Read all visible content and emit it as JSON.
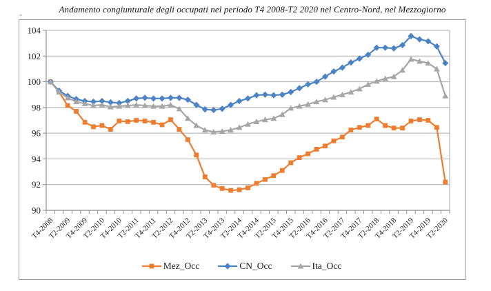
{
  "page": {
    "title": "Andamento congiunturale degli occupati nel periodo T4  2008-T2  2020 nel Centro-Nord, nel Mezzogiorno",
    "artifact_mark": "„"
  },
  "colors": {
    "mez": "#ED7D31",
    "cn": "#4C83C5",
    "ita": "#A6A6A6",
    "grid": "#ABABAB",
    "axis": "#8C8C8C",
    "tick_text": "#23232e",
    "frame": "#999999"
  },
  "chart_data": {
    "type": "line",
    "title": "Andamento congiunturale degli occupati nel periodo T4  2008-T2  2020 nel Centro-Nord, nel Mezzogiorno",
    "xlabel": "",
    "ylabel": "",
    "ylim": [
      90,
      104
    ],
    "ytick_step": 2,
    "y_tick_labels": [
      "104",
      "102",
      "100",
      "98",
      "96",
      "94",
      "92",
      "90"
    ],
    "grid": true,
    "legend_position": "bottom",
    "x": [
      "T4-2008",
      "T1-2009",
      "T2-2009",
      "T3-2009",
      "T4-2009",
      "T1-2010",
      "T2-2010",
      "T3-2010",
      "T4-2010",
      "T1-2011",
      "T2-2011",
      "T3-2011",
      "T4-2011",
      "T1-2012",
      "T2-2012",
      "T3-2012",
      "T4-2012",
      "T1-2013",
      "T2-2013",
      "T3-2013",
      "T4-2013",
      "T1-2014",
      "T2-2014",
      "T3-2014",
      "T4-2014",
      "T1-2015",
      "T2-2015",
      "T3-2015",
      "T4-2015",
      "T1-2016",
      "T2-2016",
      "T3-2016",
      "T4-2016",
      "T1-2017",
      "T2-2017",
      "T3-2017",
      "T4-2017",
      "T1-2018",
      "T2-2018",
      "T3-2018",
      "T4-2018",
      "T1-2019",
      "T2-2019",
      "T3-2019",
      "T4-2019",
      "T1-2020",
      "T2-2020"
    ],
    "x_tick_labels": [
      "T4-2008",
      "T2-2009",
      "T4-2009",
      "T2-2010",
      "T4-2010",
      "T2-2011",
      "T4-2011",
      "T2-2012",
      "T4-2012",
      "T2-2013",
      "T4-2013",
      "T2-2014",
      "T4-2014",
      "T2-2015",
      "T4-2015",
      "T2-2016",
      "T4-2016",
      "T2-2017",
      "T4-2017",
      "T2-2018",
      "T4-2018",
      "T2-2019",
      "T4-2019",
      "T2-2020"
    ],
    "series": [
      {
        "name": "Mez_Occ",
        "marker": "square",
        "color_key": "mez",
        "values": [
          100,
          99.2,
          98.15,
          97.7,
          96.85,
          96.5,
          96.6,
          96.3,
          96.95,
          96.9,
          97.0,
          96.95,
          96.85,
          96.65,
          97.05,
          96.3,
          95.5,
          94.3,
          92.6,
          91.95,
          91.7,
          91.55,
          91.6,
          91.75,
          92.1,
          92.4,
          92.7,
          93.1,
          93.7,
          94.1,
          94.4,
          94.75,
          95.0,
          95.4,
          95.7,
          96.25,
          96.45,
          96.6,
          97.1,
          96.6,
          96.4,
          96.4,
          96.95,
          97.05,
          97.0,
          96.45,
          92.2
        ]
      },
      {
        "name": "CN_Occ",
        "marker": "diamond",
        "color_key": "cn",
        "values": [
          100,
          99.3,
          98.9,
          98.65,
          98.5,
          98.45,
          98.5,
          98.4,
          98.35,
          98.5,
          98.7,
          98.75,
          98.7,
          98.7,
          98.75,
          98.75,
          98.6,
          98.2,
          97.85,
          97.8,
          97.9,
          98.2,
          98.5,
          98.7,
          98.95,
          99.0,
          98.95,
          99.0,
          99.2,
          99.5,
          99.8,
          100.0,
          100.4,
          100.8,
          101.1,
          101.5,
          101.8,
          102.1,
          102.65,
          102.65,
          102.6,
          102.85,
          103.55,
          103.3,
          103.15,
          102.75,
          101.45
        ]
      },
      {
        "name": "Ita_Occ",
        "marker": "triangle",
        "color_key": "ita",
        "values": [
          100,
          99.2,
          98.75,
          98.45,
          98.3,
          98.15,
          98.2,
          98.05,
          98.1,
          98.15,
          98.2,
          98.15,
          98.1,
          98.1,
          98.2,
          97.9,
          97.15,
          96.6,
          96.25,
          96.1,
          96.15,
          96.25,
          96.45,
          96.7,
          96.9,
          97.05,
          97.15,
          97.45,
          97.95,
          98.1,
          98.25,
          98.45,
          98.6,
          98.8,
          99.0,
          99.2,
          99.45,
          99.8,
          100.05,
          100.25,
          100.4,
          100.9,
          101.75,
          101.6,
          101.45,
          101.0,
          98.9
        ]
      }
    ]
  }
}
